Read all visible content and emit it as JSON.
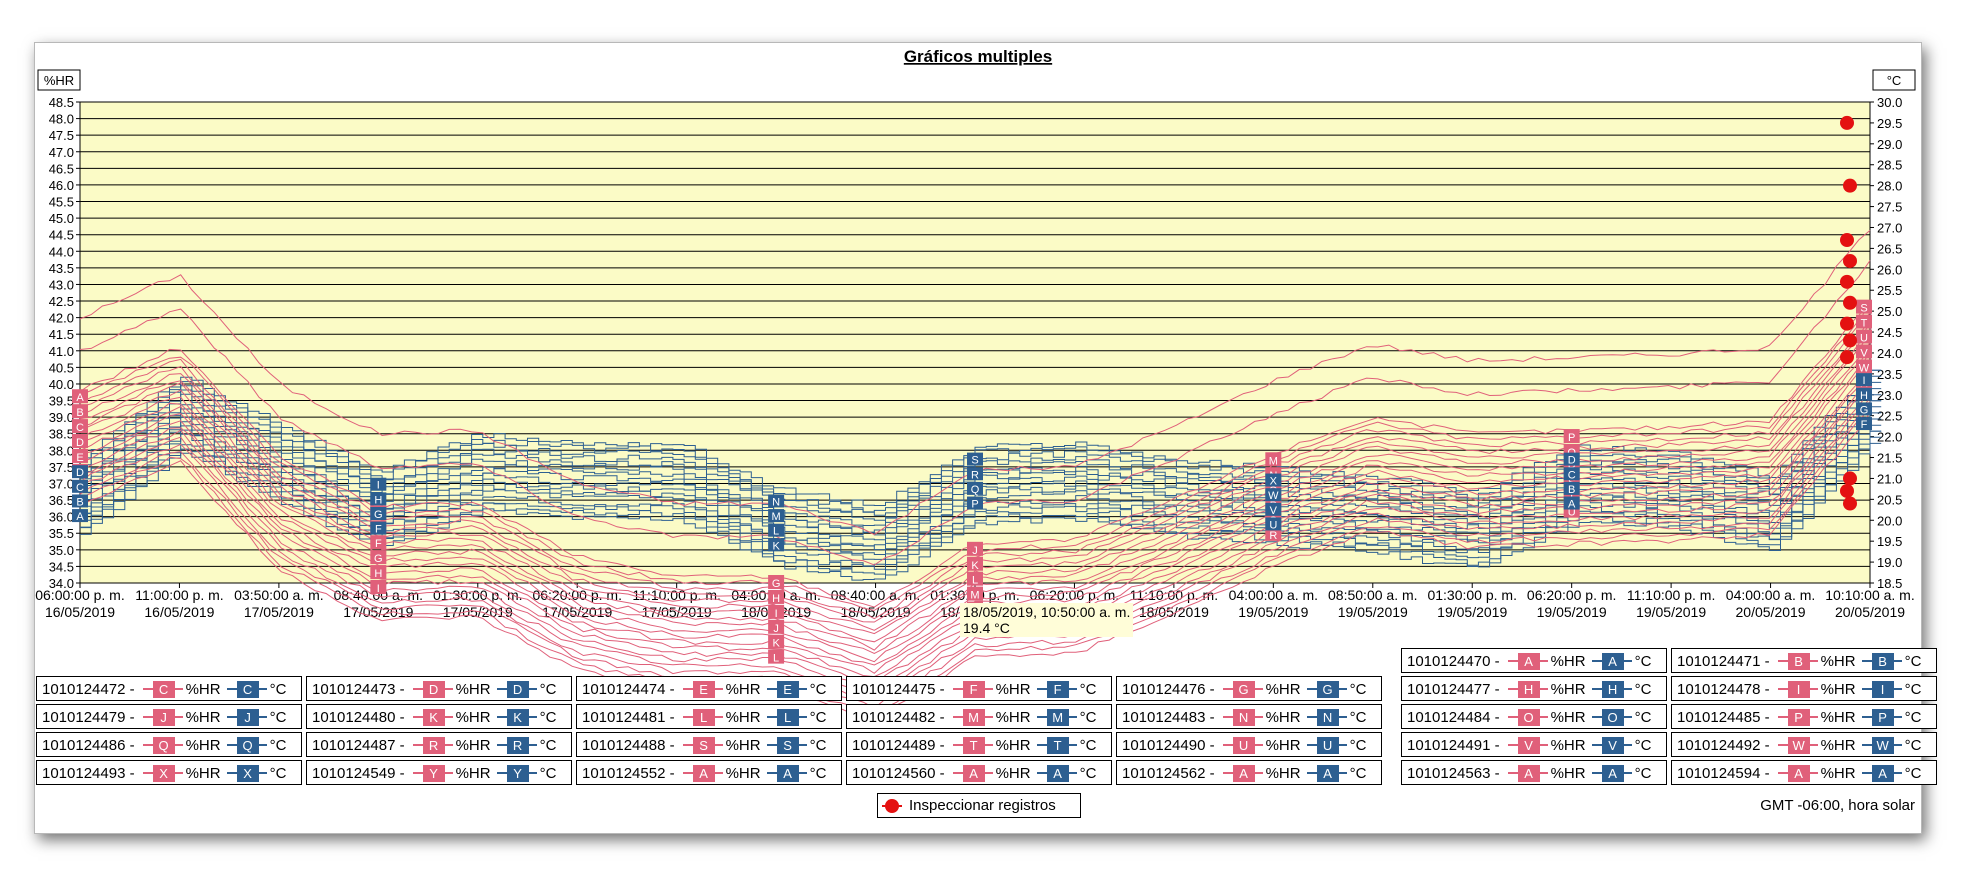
{
  "title": "Gráficos multiples",
  "left_unit": "%HR",
  "right_unit": "°C",
  "timezone_label": "GMT -06:00, hora solar",
  "bottom_legend_label": "Inspeccionar registros",
  "tooltip": {
    "line1": "18/05/2019, 10:50:00 a. m.",
    "line2": "19.4 °C"
  },
  "colors": {
    "hr": "#e0607a",
    "temp": "#2d5f91",
    "plot_bg": "#fbfbc6",
    "marker": "#e41111"
  },
  "chart_data": {
    "type": "line",
    "title": "Gráficos multiples",
    "ylabel_left": "%HR",
    "ylabel_right": "°C",
    "ylim_left": [
      34.0,
      48.5
    ],
    "ylim_right": [
      18.5,
      30.0
    ],
    "y_ticks_left": [
      "48.5",
      "48.0",
      "47.5",
      "47.0",
      "46.5",
      "46.0",
      "45.5",
      "45.0",
      "44.5",
      "44.0",
      "43.5",
      "43.0",
      "42.5",
      "42.0",
      "41.5",
      "41.0",
      "40.5",
      "40.0",
      "39.5",
      "39.0",
      "38.5",
      "38.0",
      "37.5",
      "37.0",
      "36.5",
      "36.0",
      "35.5",
      "35.0",
      "34.5",
      "34.0"
    ],
    "y_ticks_right": [
      "30.0",
      "29.5",
      "29.0",
      "28.5",
      "28.0",
      "27.5",
      "27.0",
      "26.5",
      "26.0",
      "25.5",
      "25.0",
      "24.5",
      "24.0",
      "23.5",
      "23.0",
      "22.5",
      "22.0",
      "21.5",
      "21.0",
      "20.5",
      "20.0",
      "19.5",
      "19.0",
      "18.5"
    ],
    "x_ticks": [
      {
        "time": "06:00:00 p. m.",
        "date": "16/05/2019"
      },
      {
        "time": "11:00:00 p. m.",
        "date": "16/05/2019"
      },
      {
        "time": "03:50:00 a. m.",
        "date": "17/05/2019"
      },
      {
        "time": "08:40:00 a. m.",
        "date": "17/05/2019"
      },
      {
        "time": "01:30:00 p. m.",
        "date": "17/05/2019"
      },
      {
        "time": "06:20:00 p. m.",
        "date": "17/05/2019"
      },
      {
        "time": "11:10:00 p. m.",
        "date": "17/05/2019"
      },
      {
        "time": "04:00:00 a. m.",
        "date": "18/05/2019"
      },
      {
        "time": "08:40:00 a. m.",
        "date": "18/05/2019"
      },
      {
        "time": "01:30:00 p. m.",
        "date": "18/05/2019"
      },
      {
        "time": "06:20:00 p. m.",
        "date": "18/05/2019"
      },
      {
        "time": "11:10:00 p. m.",
        "date": "18/05/2019"
      },
      {
        "time": "04:00:00 a. m.",
        "date": "19/05/2019"
      },
      {
        "time": "08:50:00 a. m.",
        "date": "19/05/2019"
      },
      {
        "time": "01:30:00 p. m.",
        "date": "19/05/2019"
      },
      {
        "time": "06:20:00 p. m.",
        "date": "19/05/2019"
      },
      {
        "time": "11:10:00 p. m.",
        "date": "19/05/2019"
      },
      {
        "time": "04:00:00 a. m.",
        "date": "20/05/2019"
      },
      {
        "time": "10:10:00 a. m.",
        "date": "20/05/2019"
      }
    ],
    "hr_series_sample": {
      "name": "%HR",
      "values": [
        42.0,
        43.3,
        40.0,
        38.5,
        38.6,
        37.0,
        36.4,
        36.4,
        35.5,
        37.4,
        37.5,
        38.7,
        40.1,
        41.2,
        40.7,
        40.8,
        40.9,
        41.1,
        44.7
      ]
    },
    "temp_series_sample": {
      "name": "°C",
      "values": [
        20.6,
        22.6,
        21.4,
        20.3,
        21.2,
        21.0,
        21.0,
        19.9,
        19.5,
        20.9,
        21.0,
        20.6,
        20.4,
        20.2,
        19.8,
        20.9,
        20.8,
        20.2,
        22.8
      ]
    }
  },
  "legend_rows": [
    [
      {
        "id": "1010124470 -",
        "hr": "A",
        "t": "A"
      },
      {
        "id": "1010124471 -",
        "hr": "B",
        "t": "B"
      }
    ],
    [
      {
        "id": "1010124472 -",
        "hr": "C",
        "t": "C"
      },
      {
        "id": "1010124473 -",
        "hr": "D",
        "t": "D"
      },
      {
        "id": "1010124474 -",
        "hr": "E",
        "t": "E"
      },
      {
        "id": "1010124475 -",
        "hr": "F",
        "t": "F"
      },
      {
        "id": "1010124476 -",
        "hr": "G",
        "t": "G"
      },
      {
        "id": "1010124477 -",
        "hr": "H",
        "t": "H"
      },
      {
        "id": "1010124478 -",
        "hr": "I",
        "t": "I"
      }
    ],
    [
      {
        "id": "1010124479 -",
        "hr": "J",
        "t": "J"
      },
      {
        "id": "1010124480 -",
        "hr": "K",
        "t": "K"
      },
      {
        "id": "1010124481 -",
        "hr": "L",
        "t": "L"
      },
      {
        "id": "1010124482 -",
        "hr": "M",
        "t": "M"
      },
      {
        "id": "1010124483 -",
        "hr": "N",
        "t": "N"
      },
      {
        "id": "1010124484 -",
        "hr": "O",
        "t": "O"
      },
      {
        "id": "1010124485 -",
        "hr": "P",
        "t": "P"
      }
    ],
    [
      {
        "id": "1010124486 -",
        "hr": "Q",
        "t": "Q"
      },
      {
        "id": "1010124487 -",
        "hr": "R",
        "t": "R"
      },
      {
        "id": "1010124488 -",
        "hr": "S",
        "t": "S"
      },
      {
        "id": "1010124489 -",
        "hr": "T",
        "t": "T"
      },
      {
        "id": "1010124490 -",
        "hr": "U",
        "t": "U"
      },
      {
        "id": "1010124491 -",
        "hr": "V",
        "t": "V"
      },
      {
        "id": "1010124492 -",
        "hr": "W",
        "t": "W"
      }
    ],
    [
      {
        "id": "1010124493 -",
        "hr": "X",
        "t": "X"
      },
      {
        "id": "1010124549 -",
        "hr": "Y",
        "t": "Y"
      },
      {
        "id": "1010124552 -",
        "hr": "A",
        "t": "A"
      },
      {
        "id": "1010124560 -",
        "hr": "A",
        "t": "A"
      },
      {
        "id": "1010124562 -",
        "hr": "A",
        "t": "A"
      },
      {
        "id": "1010124563 -",
        "hr": "A",
        "t": "A"
      },
      {
        "id": "1010124594 -",
        "hr": "A",
        "t": "A"
      }
    ]
  ],
  "legend_hr_label": "%HR",
  "legend_t_label": "°C"
}
